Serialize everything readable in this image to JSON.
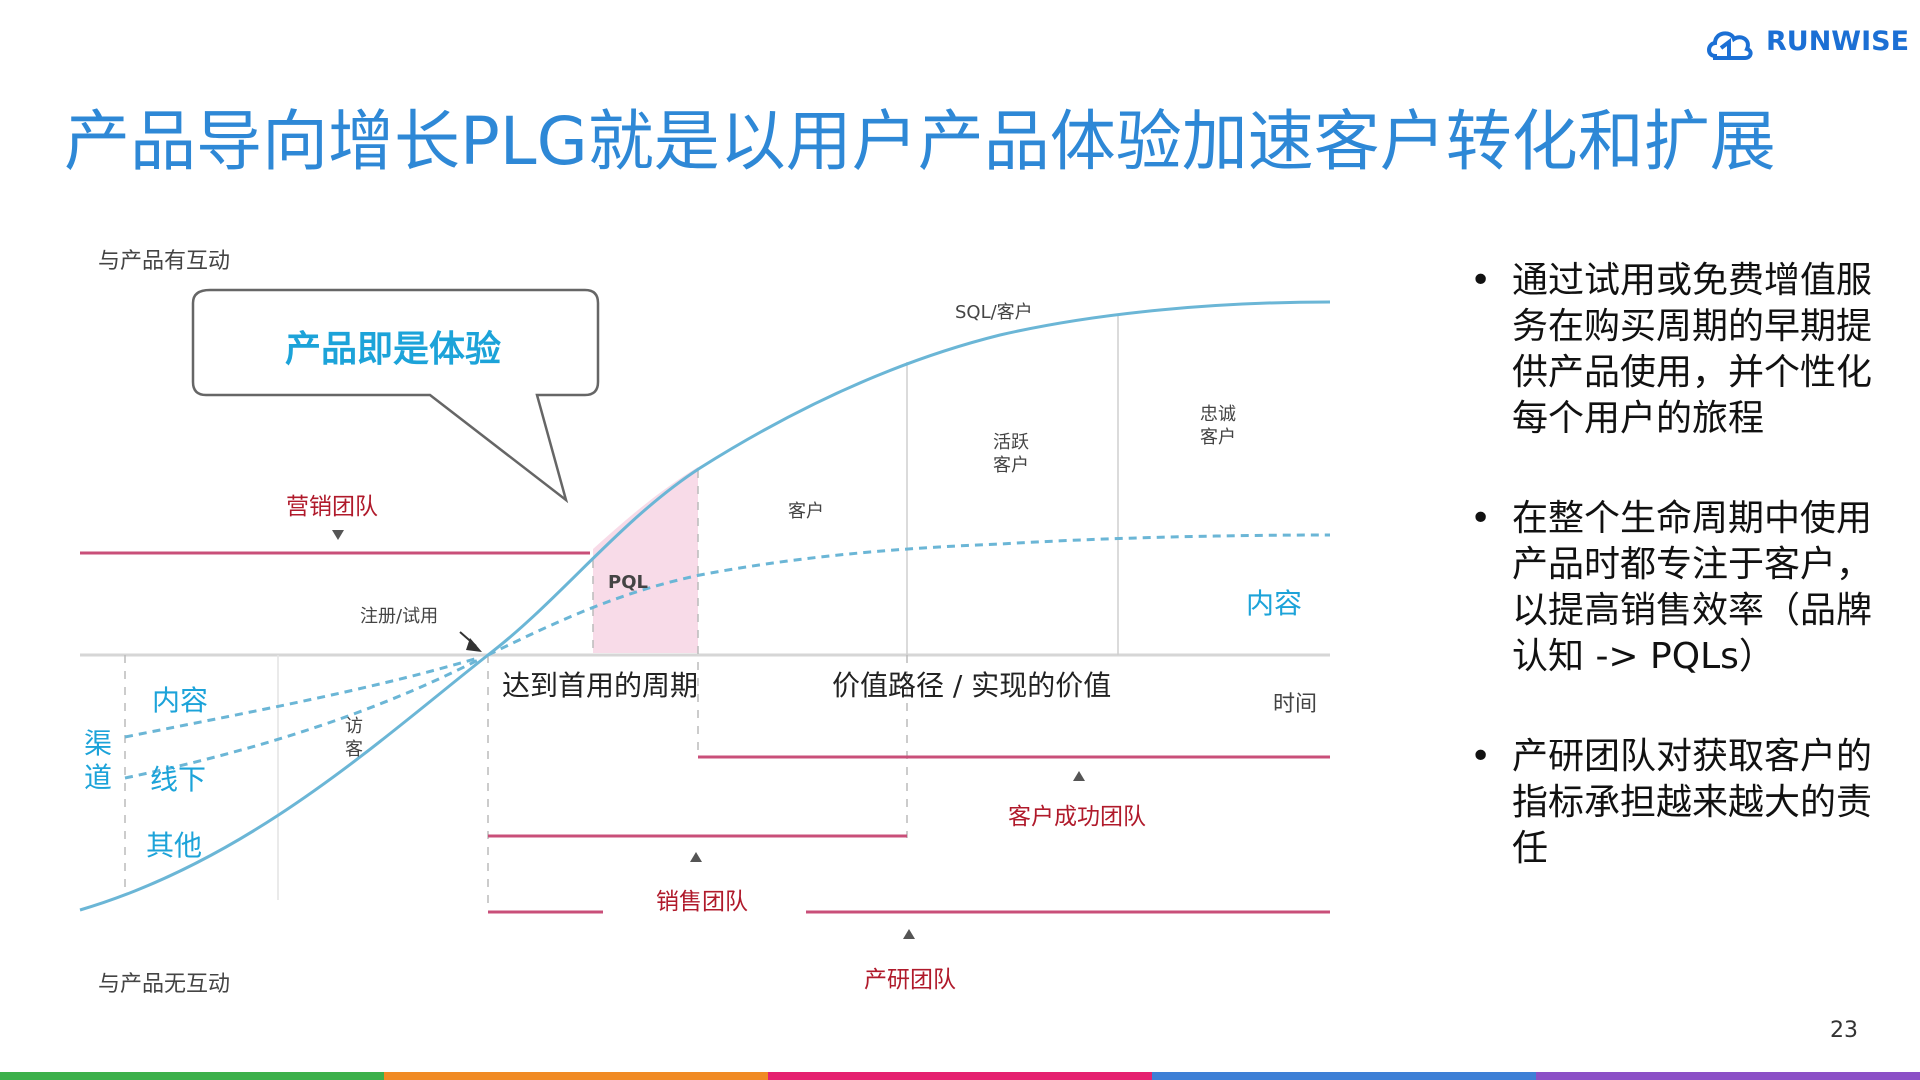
{
  "brand": {
    "name": "RUNWISE",
    "color": "#1b6fd4"
  },
  "slide": {
    "title": "产品导向增长PLG就是以用户产品体验加速客户转化和扩展",
    "page_number": "23"
  },
  "diagram": {
    "y_axis_top": "与产品有互动",
    "y_axis_bottom": "与产品无互动",
    "x_axis": "时间",
    "bubble": "产品即是体验",
    "stages": {
      "sql": "SQL/客户",
      "loyal_1": "忠诚",
      "loyal_2": "客户",
      "active_1": "活跃",
      "active_2": "客户",
      "customer": "客户",
      "pql": "PQL",
      "signup": "注册/试用",
      "visitor_1": "访",
      "visitor_2": "客"
    },
    "channels": {
      "heading_1": "渠",
      "heading_2": "道",
      "content": "内容",
      "offline": "线下",
      "other": "其他"
    },
    "content_right": "内容",
    "phase_first_use": "达到首用的周期",
    "phase_value_path": "价值路径 / 实现的价值",
    "teams": {
      "marketing": "营销团队",
      "customer_success": "客户成功团队",
      "sales": "销售团队",
      "rnd": "产研团队"
    },
    "colors": {
      "curve": "#6bb6d6",
      "team_line": "#c94f79",
      "pql_fill": "#f8dbe8"
    }
  },
  "bullets": [
    "通过试用或免费增值服务在购买周期的早期提供产品使用，并个性化每个用户的旅程",
    "在整个生命周期中使用产品时都专注于客户，以提高销售效率（品牌认知 -> PQLs）",
    "产研团队对获取客户的指标承担越来越大的责任"
  ],
  "footer_bar_colors": [
    "#3cb04a",
    "#f08a24",
    "#e5216f",
    "#3d7fd6",
    "#8b4fc6"
  ]
}
